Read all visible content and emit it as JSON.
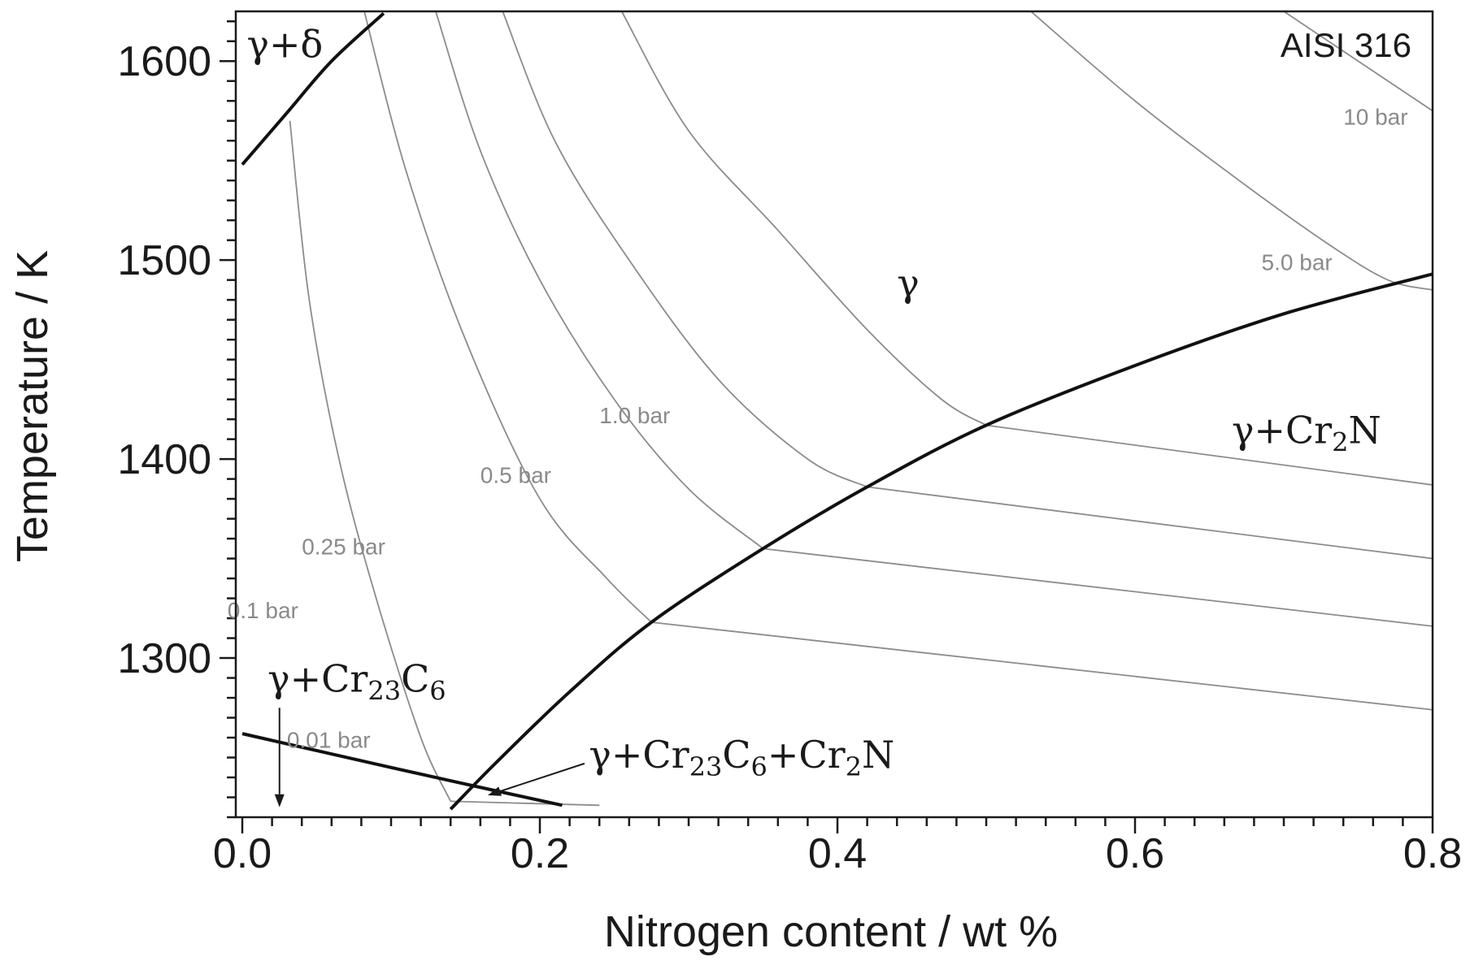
{
  "chart_data": {
    "type": "line",
    "corner_label": "AISI 316",
    "xlabel": "Nitrogen content / wt %",
    "ylabel": "Temperature / K",
    "xlim": [
      0.0,
      0.8
    ],
    "ylim": [
      1220,
      1625
    ],
    "x_ticks": [
      0.0,
      0.2,
      0.4,
      0.6,
      0.8
    ],
    "x_tick_labels": [
      "0.0",
      "0.2",
      "0.4",
      "0.6",
      "0.8"
    ],
    "x_minor_step": 0.02,
    "y_ticks": [
      1300,
      1400,
      1500,
      1600
    ],
    "y_tick_labels": [
      "1300",
      "1400",
      "1500",
      "1600"
    ],
    "y_minor_step": 10,
    "grid": false,
    "colors": {
      "isobar": "#8c8c8c",
      "boundary": "#111111",
      "text": "#1a1a1a"
    },
    "isobars": [
      {
        "label": "0.01 bar",
        "label_at": [
          0.03,
          1255
        ],
        "points": [
          [
            0.032,
            1570
          ],
          [
            0.045,
            1480
          ],
          [
            0.065,
            1400
          ],
          [
            0.09,
            1330
          ],
          [
            0.12,
            1260
          ],
          [
            0.14,
            1228
          ]
        ]
      },
      {
        "label": "0.1 bar",
        "label_at": [
          -0.01,
          1320
        ],
        "points": [
          [
            0.082,
            1625
          ],
          [
            0.11,
            1545
          ],
          [
            0.15,
            1460
          ],
          [
            0.2,
            1380
          ],
          [
            0.245,
            1340
          ],
          [
            0.275,
            1318
          ]
        ]
      },
      {
        "label": "0.25 bar",
        "label_at": [
          0.04,
          1352
        ],
        "points": [
          [
            0.13,
            1625
          ],
          [
            0.16,
            1555
          ],
          [
            0.2,
            1490
          ],
          [
            0.25,
            1430
          ],
          [
            0.3,
            1385
          ],
          [
            0.35,
            1355
          ]
        ]
      },
      {
        "label": "0.5 bar",
        "label_at": [
          0.16,
          1388
        ],
        "points": [
          [
            0.175,
            1625
          ],
          [
            0.21,
            1560
          ],
          [
            0.26,
            1500
          ],
          [
            0.32,
            1440
          ],
          [
            0.38,
            1400
          ],
          [
            0.42,
            1386
          ]
        ]
      },
      {
        "label": "1.0 bar",
        "label_at": [
          0.24,
          1418
        ],
        "points": [
          [
            0.255,
            1625
          ],
          [
            0.3,
            1565
          ],
          [
            0.36,
            1515
          ],
          [
            0.42,
            1465
          ],
          [
            0.47,
            1430
          ],
          [
            0.5,
            1417
          ]
        ]
      },
      {
        "label": "5.0 bar",
        "label_at": [
          0.685,
          1495
        ],
        "points": [
          [
            0.53,
            1625
          ],
          [
            0.6,
            1580
          ],
          [
            0.67,
            1540
          ],
          [
            0.73,
            1508
          ],
          [
            0.77,
            1490
          ],
          [
            0.8,
            1485
          ]
        ]
      },
      {
        "label": "10 bar",
        "label_at": [
          0.74,
          1568
        ],
        "points": [
          [
            0.7,
            1625
          ],
          [
            0.74,
            1605
          ],
          [
            0.78,
            1585
          ],
          [
            0.8,
            1575
          ]
        ]
      }
    ],
    "tie_lines": [
      {
        "points": [
          [
            0.5,
            1417
          ],
          [
            0.8,
            1387
          ]
        ]
      },
      {
        "points": [
          [
            0.42,
            1386
          ],
          [
            0.8,
            1350
          ]
        ]
      },
      {
        "points": [
          [
            0.35,
            1355
          ],
          [
            0.8,
            1316
          ]
        ]
      },
      {
        "points": [
          [
            0.275,
            1318
          ],
          [
            0.8,
            1274
          ]
        ]
      },
      {
        "points": [
          [
            0.14,
            1228
          ],
          [
            0.24,
            1226
          ]
        ]
      }
    ],
    "phase_boundaries": [
      {
        "name": "gamma-delta",
        "points": [
          [
            0.0,
            1548
          ],
          [
            0.03,
            1574
          ],
          [
            0.06,
            1600
          ],
          [
            0.095,
            1624
          ]
        ]
      },
      {
        "name": "Cr2N-solvus",
        "points": [
          [
            0.14,
            1224
          ],
          [
            0.17,
            1247
          ],
          [
            0.22,
            1283
          ],
          [
            0.275,
            1318
          ],
          [
            0.35,
            1355
          ],
          [
            0.42,
            1386
          ],
          [
            0.5,
            1417
          ],
          [
            0.6,
            1447
          ],
          [
            0.7,
            1473
          ],
          [
            0.8,
            1493
          ]
        ]
      },
      {
        "name": "Cr23C6-solvus",
        "points": [
          [
            0.0,
            1262
          ],
          [
            0.1,
            1245
          ],
          [
            0.16,
            1235
          ],
          [
            0.215,
            1226
          ]
        ]
      }
    ],
    "phase_labels": [
      {
        "key": "gd",
        "at": [
          0.003,
          1602
        ]
      },
      {
        "key": "g",
        "at": [
          0.44,
          1482
        ]
      },
      {
        "key": "gcr2n",
        "at": [
          0.665,
          1408
        ]
      },
      {
        "key": "gc",
        "at": [
          0.017,
          1283
        ]
      },
      {
        "key": "gcn",
        "at": [
          0.233,
          1245
        ]
      }
    ],
    "arrows": [
      {
        "name": "gamma-Cr23C6-arrow",
        "from": [
          0.025,
          1275
        ],
        "to": [
          0.025,
          1225
        ]
      },
      {
        "name": "three-phase-arrow",
        "from": [
          0.23,
          1247
        ],
        "to": [
          0.165,
          1231
        ]
      }
    ]
  },
  "labels": {
    "gd_a": "γ+δ",
    "g": "γ",
    "gcr2n_a": "γ+Cr",
    "gcr2n_s": "2",
    "gcr2n_b": "N",
    "gc_a": "γ+Cr",
    "gc_s1": "23",
    "gc_b": "C",
    "gc_s2": "6",
    "gcn_a": "γ+Cr",
    "gcn_s1": "23",
    "gcn_b": "C",
    "gcn_s2": "6",
    "gcn_c": "+Cr",
    "gcn_s3": "2",
    "gcn_d": "N"
  }
}
